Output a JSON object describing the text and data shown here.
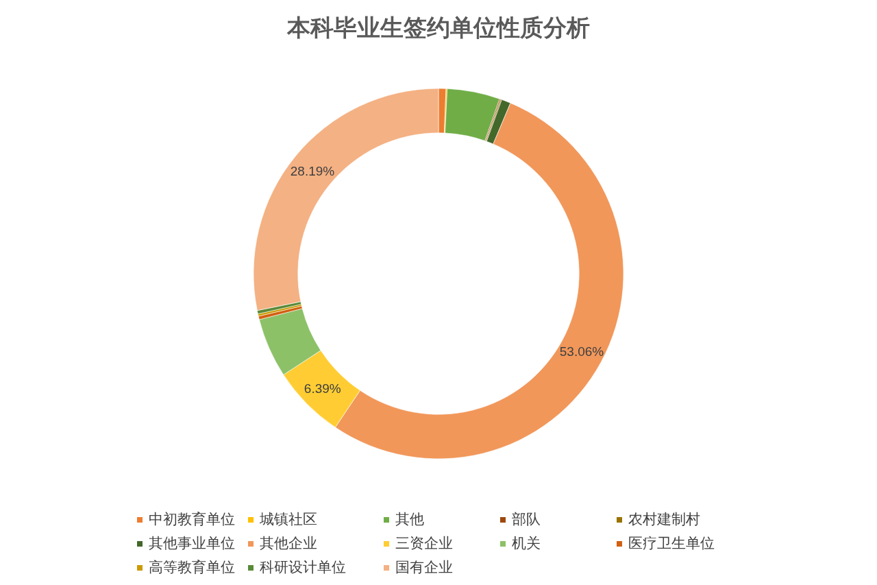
{
  "chart_data": {
    "type": "donut",
    "title": "本科毕业生签约单位性质分析",
    "categories": [
      "中初教育单位",
      "城镇社区",
      "其他",
      "部队",
      "农村建制村",
      "其他事业单位",
      "其他企业",
      "三资企业",
      "机关",
      "医疗卫生单位",
      "高等教育单位",
      "科研设计单位",
      "国有企业"
    ],
    "values": [
      0.65,
      0.1,
      4.61,
      0.1,
      0.1,
      0.8,
      53.06,
      6.39,
      5.2,
      0.3,
      0.2,
      0.3,
      28.19
    ],
    "colors": [
      "#ed7d31",
      "#ffc000",
      "#70ad47",
      "#9e480e",
      "#997300",
      "#43682b",
      "#f1975a",
      "#ffcd33",
      "#8cc168",
      "#d26012",
      "#cc9a00",
      "#5a8a39",
      "#f4b183"
    ],
    "value_labels": [
      null,
      null,
      null,
      null,
      null,
      null,
      "53.06%",
      "6.39%",
      null,
      null,
      null,
      null,
      "28.19%"
    ],
    "legend": "bottom"
  }
}
